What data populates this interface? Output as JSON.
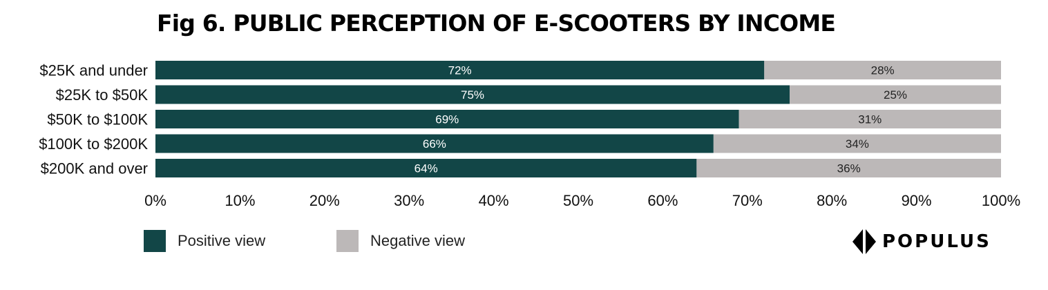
{
  "chart_data": {
    "type": "bar",
    "orientation": "horizontal",
    "stacked": true,
    "title": "Fig 6. PUBLIC PERCEPTION OF E-SCOOTERS BY INCOME",
    "categories": [
      "$25K and under",
      "$25K to $50K",
      "$50K to $100K",
      "$100K to $200K",
      "$200K and over"
    ],
    "series": [
      {
        "name": "Positive view",
        "color": "#124647",
        "values": [
          72,
          75,
          69,
          66,
          64
        ],
        "labels": [
          "72%",
          "75%",
          "69%",
          "66%",
          "64%"
        ]
      },
      {
        "name": "Negative view",
        "color": "#bcb8b8",
        "values": [
          28,
          25,
          31,
          34,
          36
        ],
        "labels": [
          "28%",
          "25%",
          "31%",
          "34%",
          "36%"
        ]
      }
    ],
    "xlim": [
      0,
      100
    ],
    "x_ticks": [
      "0%",
      "10%",
      "20%",
      "30%",
      "40%",
      "50%",
      "60%",
      "70%",
      "80%",
      "90%",
      "100%"
    ],
    "legend_position": "bottom-left",
    "grid": false
  },
  "legend": {
    "positive_label": "Positive view",
    "negative_label": "Negative view"
  },
  "brand": {
    "name": "POPULUS",
    "icon": "populus-diamond-logo-icon"
  }
}
